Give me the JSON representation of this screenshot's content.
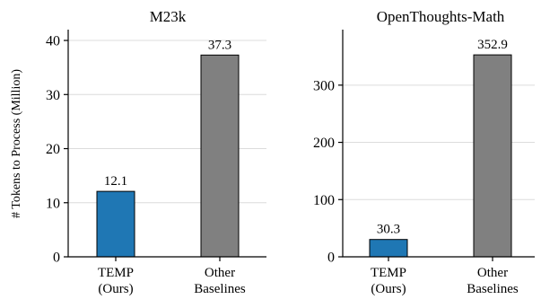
{
  "ylabel": "# Tokens to Process (Million)",
  "chart_data": [
    {
      "type": "bar",
      "title": "M23k",
      "categories": [
        [
          "TEMP",
          "(Ours)"
        ],
        [
          "Other",
          "Baselines"
        ]
      ],
      "values": [
        12.1,
        37.3
      ],
      "value_labels": [
        "12.1",
        "37.3"
      ],
      "colors": [
        "#1f77b4",
        "#808080"
      ],
      "ylim": [
        0,
        42
      ],
      "yticks": [
        0,
        10,
        20,
        30,
        40
      ],
      "grid": true
    },
    {
      "type": "bar",
      "title": "OpenThoughts-Math",
      "categories": [
        [
          "TEMP",
          "(Ours)"
        ],
        [
          "Other",
          "Baselines"
        ]
      ],
      "values": [
        30.3,
        352.9
      ],
      "value_labels": [
        "30.3",
        "352.9"
      ],
      "colors": [
        "#1f77b4",
        "#808080"
      ],
      "ylim": [
        0,
        397
      ],
      "yticks": [
        0,
        100,
        200,
        300
      ],
      "grid": true
    }
  ]
}
